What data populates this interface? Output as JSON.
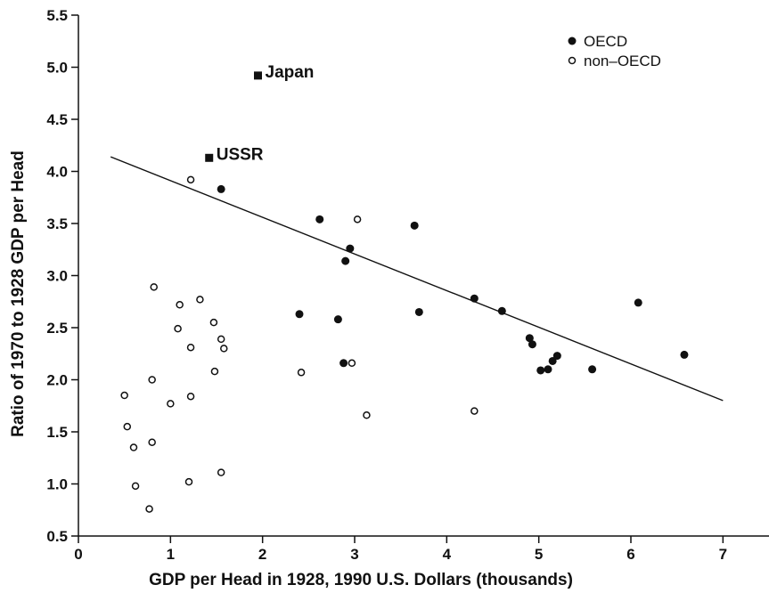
{
  "chart_data": {
    "type": "scatter",
    "xlabel": "GDP per Head in 1928, 1990 U.S. Dollars (thousands)",
    "ylabel": "Ratio of 1970 to 1928 GDP per Head",
    "xlim": [
      0,
      7.5
    ],
    "ylim": [
      0.5,
      5.5
    ],
    "x_ticks": [
      "0",
      "1",
      "2",
      "3",
      "4",
      "5",
      "6",
      "7"
    ],
    "y_ticks": [
      "0.5",
      "1.0",
      "1.5",
      "2.0",
      "2.5",
      "3.0",
      "3.5",
      "4.0",
      "4.5",
      "5.0",
      "5.5"
    ],
    "grid": false,
    "legend_position": "top-right",
    "colors": {
      "ink": "#111111",
      "background": "#ffffff"
    },
    "series": [
      {
        "name": "OECD",
        "marker": "filled-circle",
        "points": [
          [
            1.55,
            3.83
          ],
          [
            2.62,
            3.54
          ],
          [
            2.95,
            3.26
          ],
          [
            2.9,
            3.14
          ],
          [
            3.65,
            3.48
          ],
          [
            2.4,
            2.63
          ],
          [
            2.82,
            2.58
          ],
          [
            2.88,
            2.16
          ],
          [
            3.7,
            2.65
          ],
          [
            4.3,
            2.78
          ],
          [
            4.6,
            2.66
          ],
          [
            4.9,
            2.4
          ],
          [
            4.93,
            2.34
          ],
          [
            5.02,
            2.09
          ],
          [
            5.1,
            2.1
          ],
          [
            5.15,
            2.18
          ],
          [
            5.2,
            2.23
          ],
          [
            5.58,
            2.1
          ],
          [
            6.08,
            2.74
          ],
          [
            6.58,
            2.24
          ]
        ]
      },
      {
        "name": "non–OECD",
        "marker": "open-circle",
        "points": [
          [
            1.22,
            3.92
          ],
          [
            3.03,
            3.54
          ],
          [
            0.82,
            2.89
          ],
          [
            1.1,
            2.72
          ],
          [
            1.32,
            2.77
          ],
          [
            1.08,
            2.49
          ],
          [
            1.47,
            2.55
          ],
          [
            1.55,
            2.39
          ],
          [
            1.58,
            2.3
          ],
          [
            1.22,
            2.31
          ],
          [
            0.8,
            2.0
          ],
          [
            1.0,
            1.77
          ],
          [
            1.22,
            1.84
          ],
          [
            1.48,
            2.08
          ],
          [
            2.42,
            2.07
          ],
          [
            2.97,
            2.16
          ],
          [
            3.13,
            1.66
          ],
          [
            4.3,
            1.7
          ],
          [
            0.5,
            1.85
          ],
          [
            0.53,
            1.55
          ],
          [
            0.6,
            1.35
          ],
          [
            0.62,
            0.98
          ],
          [
            0.8,
            1.4
          ],
          [
            0.77,
            0.76
          ],
          [
            1.2,
            1.02
          ],
          [
            1.55,
            1.11
          ]
        ]
      }
    ],
    "labeled_points": [
      {
        "label": "Japan",
        "x": 1.95,
        "y": 4.92,
        "marker": "filled-square"
      },
      {
        "label": "USSR",
        "x": 1.42,
        "y": 4.13,
        "marker": "filled-square"
      }
    ],
    "trend_line": {
      "x": [
        0.35,
        7.0
      ],
      "y": [
        4.14,
        1.8
      ]
    }
  }
}
